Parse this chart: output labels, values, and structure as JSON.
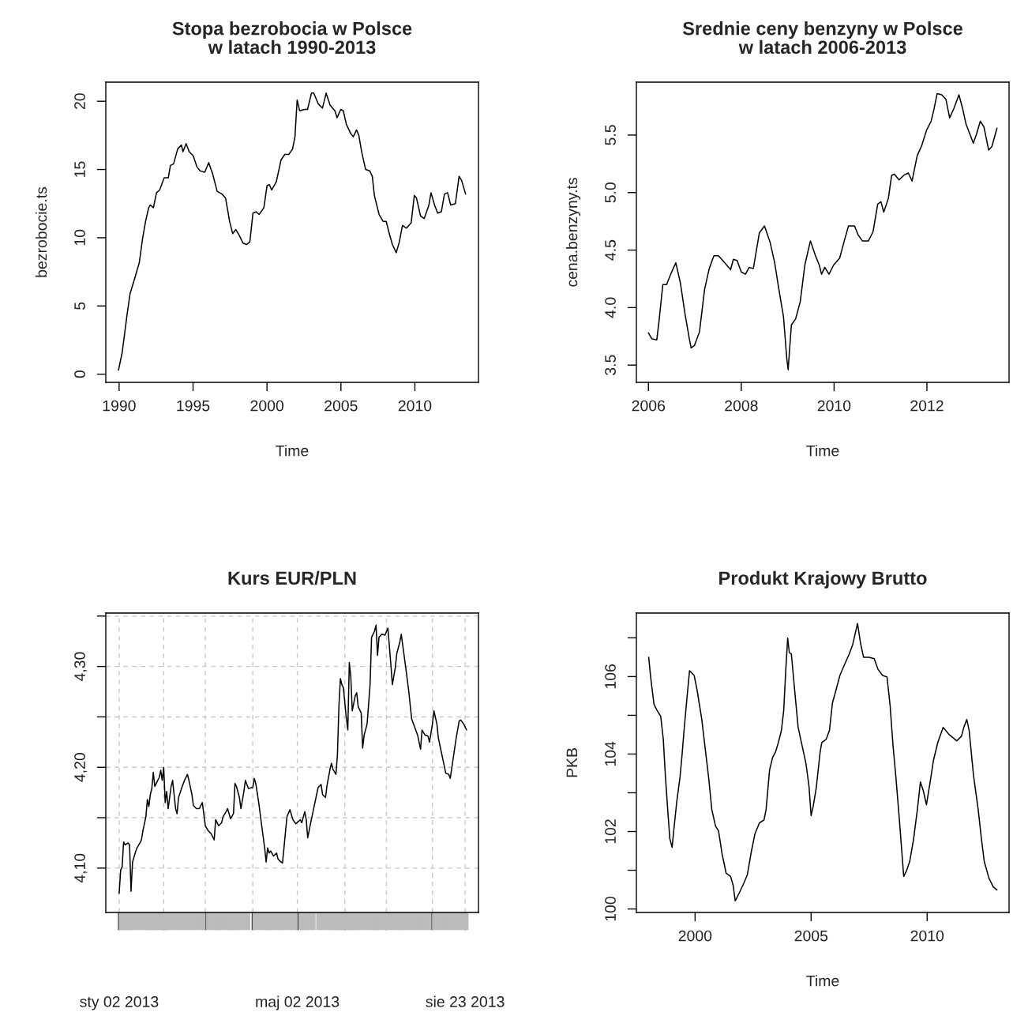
{
  "chart_data": [
    {
      "type": "line",
      "title": "Stopa bezrobocia w Polsce\nw latach 1990-2013",
      "xlabel": "Time",
      "ylabel": "bezrobocie.ts",
      "xlim": [
        1989.1,
        2014.3
      ],
      "ylim": [
        -0.6,
        21.4
      ],
      "xticks": [
        1990,
        1995,
        2000,
        2005,
        2010
      ],
      "yticks": [
        0,
        5,
        10,
        15,
        20
      ],
      "grid": false,
      "x": [
        1989.96,
        1990.21,
        1990.53,
        1990.74,
        1991.05,
        1991.37,
        1991.58,
        1991.79,
        1992.0,
        1992.11,
        1992.32,
        1992.53,
        1992.74,
        1993.05,
        1993.33,
        1993.47,
        1993.68,
        1993.96,
        1994.21,
        1994.32,
        1994.53,
        1994.74,
        1995.01,
        1995.26,
        1995.47,
        1995.79,
        1996.06,
        1996.32,
        1996.63,
        1996.95,
        1997.2,
        1997.47,
        1997.68,
        1997.89,
        1998.11,
        1998.38,
        1998.63,
        1998.84,
        1999.05,
        1999.26,
        1999.47,
        1999.79,
        2000.0,
        2000.15,
        2000.32,
        2000.63,
        2000.95,
        2001.2,
        2001.47,
        2001.73,
        2001.89,
        2002.04,
        2002.21,
        2002.53,
        2002.74,
        2003.01,
        2003.16,
        2003.47,
        2003.75,
        2004.0,
        2004.27,
        2004.59,
        2004.74,
        2004.99,
        2005.16,
        2005.37,
        2005.68,
        2005.83,
        2006.06,
        2006.21,
        2006.42,
        2006.67,
        2006.95,
        2007.12,
        2007.26,
        2007.58,
        2007.85,
        2008.06,
        2008.27,
        2008.48,
        2008.74,
        2008.95,
        2009.16,
        2009.43,
        2009.75,
        2009.96,
        2010.11,
        2010.38,
        2010.63,
        2010.95,
        2011.09,
        2011.33,
        2011.54,
        2011.79,
        2012.0,
        2012.21,
        2012.42,
        2012.74,
        2012.99,
        2013.16,
        2013.43
      ],
      "series": [
        {
          "color": "#000000",
          "values": [
            0.3,
            1.6,
            4.3,
            5.9,
            7.0,
            8.2,
            9.9,
            11.2,
            12.2,
            12.4,
            12.2,
            13.3,
            13.5,
            14.4,
            14.4,
            15.3,
            15.4,
            16.5,
            16.8,
            16.3,
            16.9,
            16.3,
            16.0,
            15.2,
            14.9,
            14.8,
            15.5,
            14.7,
            13.4,
            13.2,
            12.9,
            11.2,
            10.3,
            10.6,
            10.2,
            9.6,
            9.5,
            9.7,
            11.8,
            11.9,
            11.7,
            12.2,
            13.8,
            13.9,
            13.5,
            14.1,
            15.7,
            16.1,
            16.1,
            16.5,
            17.4,
            20.1,
            19.3,
            19.4,
            19.4,
            20.6,
            20.6,
            19.8,
            19.5,
            20.6,
            19.7,
            19.3,
            18.8,
            19.4,
            19.3,
            18.3,
            17.6,
            17.4,
            17.9,
            17.5,
            16.2,
            15.0,
            14.9,
            14.5,
            13.1,
            11.7,
            11.2,
            11.2,
            10.3,
            9.5,
            8.9,
            9.7,
            10.9,
            10.7,
            11.1,
            13.1,
            12.9,
            11.6,
            11.4,
            12.4,
            13.3,
            12.4,
            11.8,
            11.9,
            13.2,
            13.3,
            12.4,
            12.5,
            14.5,
            14.2,
            13.2
          ]
        }
      ]
    },
    {
      "type": "line",
      "title": "Srednie ceny benzyny w Polsce\nw latach 2006-2013",
      "xlabel": "Time",
      "ylabel": "cena.benzyny.ts",
      "xlim": [
        2005.74,
        2013.77
      ],
      "ylim": [
        3.35,
        5.96
      ],
      "xticks": [
        2006,
        2008,
        2010,
        2012
      ],
      "yticks": [
        {
          "value": 3.5,
          "label": "3.5"
        },
        {
          "value": 4.0,
          "label": "4.0"
        },
        {
          "value": 4.5,
          "label": "4.5"
        },
        {
          "value": 5.0,
          "label": "5.0"
        },
        {
          "value": 5.5,
          "label": "5.5"
        }
      ],
      "grid": false,
      "x": [
        2006.0,
        2006.07,
        2006.18,
        2006.23,
        2006.31,
        2006.39,
        2006.49,
        2006.59,
        2006.69,
        2006.79,
        2006.88,
        2006.92,
        2006.99,
        2007.1,
        2007.21,
        2007.31,
        2007.41,
        2007.51,
        2007.6,
        2007.77,
        2007.83,
        2007.91,
        2008.0,
        2008.09,
        2008.17,
        2008.26,
        2008.39,
        2008.5,
        2008.62,
        2008.72,
        2008.81,
        2008.91,
        2008.98,
        2009.01,
        2009.08,
        2009.17,
        2009.27,
        2009.37,
        2009.49,
        2009.6,
        2009.68,
        2009.73,
        2009.8,
        2009.89,
        2009.99,
        2010.12,
        2010.22,
        2010.31,
        2010.44,
        2010.52,
        2010.61,
        2010.74,
        2010.84,
        2010.94,
        2011.01,
        2011.07,
        2011.17,
        2011.24,
        2011.3,
        2011.4,
        2011.5,
        2011.6,
        2011.68,
        2011.79,
        2011.89,
        2011.99,
        2012.09,
        2012.15,
        2012.22,
        2012.32,
        2012.41,
        2012.49,
        2012.58,
        2012.69,
        2012.77,
        2012.84,
        2013.0,
        2013.07,
        2013.15,
        2013.23,
        2013.33,
        2013.4,
        2013.51
      ],
      "series": [
        {
          "color": "#000000",
          "values": [
            3.78,
            3.73,
            3.72,
            3.89,
            4.2,
            4.2,
            4.3,
            4.39,
            4.21,
            3.94,
            3.73,
            3.65,
            3.67,
            3.79,
            4.16,
            4.34,
            4.45,
            4.45,
            4.41,
            4.33,
            4.42,
            4.41,
            4.31,
            4.29,
            4.35,
            4.34,
            4.65,
            4.71,
            4.57,
            4.39,
            4.16,
            3.92,
            3.56,
            3.46,
            3.85,
            3.9,
            4.05,
            4.37,
            4.58,
            4.45,
            4.37,
            4.29,
            4.35,
            4.29,
            4.37,
            4.43,
            4.58,
            4.71,
            4.71,
            4.63,
            4.58,
            4.58,
            4.66,
            4.9,
            4.92,
            4.83,
            4.95,
            5.15,
            5.16,
            5.11,
            5.15,
            5.17,
            5.1,
            5.32,
            5.41,
            5.54,
            5.62,
            5.72,
            5.86,
            5.85,
            5.81,
            5.65,
            5.73,
            5.85,
            5.73,
            5.6,
            5.43,
            5.51,
            5.62,
            5.57,
            5.37,
            5.4,
            5.56
          ]
        }
      ]
    },
    {
      "type": "line",
      "title": "Kurs EUR/PLN",
      "xlim": [
        "2012-12-24",
        "2013-09-01"
      ],
      "ylim": [
        4.056,
        4.353
      ],
      "xticks": [
        {
          "value": "2013-01-02",
          "label": "sty 02 2013"
        },
        {
          "value": "2013-02-01",
          "label": null
        },
        {
          "value": "2013-03-01",
          "label": null
        },
        {
          "value": "2013-04-02",
          "label": null
        },
        {
          "value": "2013-05-02",
          "label": "maj 02 2013"
        },
        {
          "value": "2013-06-03",
          "label": null
        },
        {
          "value": "2013-07-01",
          "label": null
        },
        {
          "value": "2013-08-01",
          "label": null
        },
        {
          "value": "2013-08-23",
          "label": "sie 23 2013"
        }
      ],
      "yticks": [
        {
          "value": 4.1,
          "label": "4,10"
        },
        {
          "value": 4.15,
          "label": null
        },
        {
          "value": 4.2,
          "label": "4,20"
        },
        {
          "value": 4.25,
          "label": null
        },
        {
          "value": 4.3,
          "label": "4,30"
        },
        {
          "value": 4.35,
          "label": null
        }
      ],
      "grid": true,
      "x": [
        "2013-01-02",
        "2013-01-03",
        "2013-01-04",
        "2013-01-05",
        "2013-01-06",
        "2013-01-08",
        "2013-01-09",
        "2013-01-10",
        "2013-01-11",
        "2013-01-13",
        "2013-01-14",
        "2013-01-16",
        "2013-01-17",
        "2013-01-18",
        "2013-01-20",
        "2013-01-21",
        "2013-01-22",
        "2013-01-23",
        "2013-01-24",
        "2013-01-25",
        "2013-01-26",
        "2013-01-27",
        "2013-01-29",
        "2013-01-30",
        "2013-01-31",
        "2013-02-01",
        "2013-02-02",
        "2013-02-03",
        "2013-02-04",
        "2013-02-06",
        "2013-02-07",
        "2013-02-09",
        "2013-02-10",
        "2013-02-11",
        "2013-02-13",
        "2013-02-15",
        "2013-02-17",
        "2013-02-18",
        "2013-02-20",
        "2013-02-21",
        "2013-02-23",
        "2013-02-25",
        "2013-02-27",
        "2013-02-28",
        "2013-03-01",
        "2013-03-03",
        "2013-03-05",
        "2013-03-07",
        "2013-03-08",
        "2013-03-09",
        "2013-03-10",
        "2013-03-12",
        "2013-03-13",
        "2013-03-15",
        "2013-03-16",
        "2013-03-17",
        "2013-03-18",
        "2013-03-20",
        "2013-03-21",
        "2013-03-22",
        "2013-03-24",
        "2013-03-25",
        "2013-03-27",
        "2013-03-28",
        "2013-03-30",
        "2013-04-02",
        "2013-04-03",
        "2013-04-04",
        "2013-04-06",
        "2013-04-08",
        "2013-04-10",
        "2013-04-11",
        "2013-04-12",
        "2013-04-13",
        "2013-04-14",
        "2013-04-16",
        "2013-04-18",
        "2013-04-19",
        "2013-04-21",
        "2013-04-22",
        "2013-04-23",
        "2013-04-25",
        "2013-04-27",
        "2013-04-29",
        "2013-05-01",
        "2013-05-04",
        "2013-05-05",
        "2013-05-07",
        "2013-05-08",
        "2013-05-09",
        "2013-05-11",
        "2013-05-13",
        "2013-05-16",
        "2013-05-18",
        "2013-05-19",
        "2013-05-21",
        "2013-05-22",
        "2013-05-24",
        "2013-05-25",
        "2013-05-26",
        "2013-05-28",
        "2013-05-29",
        "2013-05-30",
        "2013-05-31",
        "2013-06-01",
        "2013-06-02",
        "2013-06-04",
        "2013-06-05",
        "2013-06-06",
        "2013-06-07",
        "2013-06-08",
        "2013-06-10",
        "2013-06-11",
        "2013-06-12",
        "2013-06-14",
        "2013-06-15",
        "2013-06-16",
        "2013-06-18",
        "2013-06-20",
        "2013-06-21",
        "2013-06-23",
        "2013-06-24",
        "2013-06-25",
        "2013-06-26",
        "2013-06-28",
        "2013-06-30",
        "2013-07-02",
        "2013-07-04",
        "2013-07-05",
        "2013-07-07",
        "2013-07-08",
        "2013-07-10",
        "2013-07-11",
        "2013-07-12",
        "2013-07-14",
        "2013-07-16",
        "2013-07-18",
        "2013-07-20",
        "2013-07-22",
        "2013-07-24",
        "2013-07-25",
        "2013-07-27",
        "2013-07-29",
        "2013-07-30",
        "2013-08-01",
        "2013-08-02",
        "2013-08-04",
        "2013-08-05",
        "2013-08-07",
        "2013-08-09",
        "2013-08-10",
        "2013-08-12",
        "2013-08-13",
        "2013-08-15",
        "2013-08-17",
        "2013-08-19",
        "2013-08-20",
        "2013-08-22",
        "2013-08-24"
      ],
      "series": [
        {
          "color": "#000000",
          "values": [
            4.075,
            4.098,
            4.101,
            4.126,
            4.123,
            4.125,
            4.123,
            4.077,
            4.106,
            4.116,
            4.12,
            4.125,
            4.128,
            4.137,
            4.151,
            4.168,
            4.161,
            4.173,
            4.179,
            4.195,
            4.181,
            4.184,
            4.19,
            4.197,
            4.187,
            4.2,
            4.165,
            4.176,
            4.159,
            4.181,
            4.187,
            4.159,
            4.154,
            4.17,
            4.179,
            4.187,
            4.193,
            4.187,
            4.173,
            4.162,
            4.159,
            4.159,
            4.165,
            4.154,
            4.142,
            4.137,
            4.134,
            4.128,
            4.148,
            4.145,
            4.142,
            4.145,
            4.151,
            4.156,
            4.159,
            4.154,
            4.149,
            4.154,
            4.184,
            4.181,
            4.17,
            4.159,
            4.176,
            4.187,
            4.179,
            4.18,
            4.189,
            4.184,
            4.165,
            4.142,
            4.12,
            4.106,
            4.12,
            4.115,
            4.117,
            4.112,
            4.115,
            4.109,
            4.106,
            4.105,
            4.12,
            4.151,
            4.158,
            4.148,
            4.144,
            4.148,
            4.145,
            4.156,
            4.148,
            4.13,
            4.145,
            4.159,
            4.18,
            4.183,
            4.173,
            4.17,
            4.182,
            4.198,
            4.204,
            4.198,
            4.193,
            4.212,
            4.26,
            4.288,
            4.282,
            4.279,
            4.249,
            4.237,
            4.304,
            4.29,
            4.256,
            4.271,
            4.274,
            4.26,
            4.254,
            4.219,
            4.232,
            4.243,
            4.282,
            4.329,
            4.335,
            4.341,
            4.311,
            4.329,
            4.332,
            4.331,
            4.338,
            4.302,
            4.282,
            4.299,
            4.313,
            4.324,
            4.332,
            4.321,
            4.299,
            4.276,
            4.248,
            4.24,
            4.232,
            4.218,
            4.237,
            4.232,
            4.231,
            4.225,
            4.243,
            4.256,
            4.243,
            4.229,
            4.215,
            4.201,
            4.194,
            4.193,
            4.189,
            4.209,
            4.229,
            4.246,
            4.247,
            4.243,
            4.237
          ]
        }
      ]
    },
    {
      "type": "line",
      "title": "Produkt Krajowy Brutto",
      "xlabel": "Time",
      "ylabel": "PKB",
      "xlim": [
        1997.47,
        2013.53
      ],
      "ylim": [
        99.91,
        107.64
      ],
      "xticks": [
        2000,
        2005,
        2010
      ],
      "yticks": [
        100,
        {
          "value": 101,
          "label": null
        },
        102,
        {
          "value": 103,
          "label": null
        },
        104,
        {
          "value": 105,
          "label": null
        },
        106,
        {
          "value": 107,
          "label": null
        }
      ],
      "grid": false,
      "x": [
        1998.0,
        1998.1,
        1998.23,
        1998.36,
        1998.52,
        1998.63,
        1998.72,
        1998.81,
        1998.91,
        1999.01,
        1999.08,
        1999.21,
        1999.35,
        1999.44,
        1999.53,
        1999.63,
        1999.76,
        1999.96,
        2000.09,
        2000.29,
        2000.42,
        2000.59,
        2000.72,
        2000.88,
        2001.01,
        2001.16,
        2001.34,
        2001.53,
        2001.64,
        2001.73,
        2001.9,
        2002.08,
        2002.25,
        2002.42,
        2002.58,
        2002.77,
        2002.97,
        2003.06,
        2003.21,
        2003.34,
        2003.47,
        2003.59,
        2003.72,
        2003.82,
        2003.91,
        2003.99,
        2004.06,
        2004.15,
        2004.28,
        2004.44,
        2004.61,
        2004.78,
        2004.91,
        2005.0,
        2005.09,
        2005.22,
        2005.39,
        2005.46,
        2005.65,
        2005.79,
        2005.92,
        2006.05,
        2006.24,
        2006.44,
        2006.64,
        2006.79,
        2007.0,
        2007.13,
        2007.26,
        2007.49,
        2007.72,
        2007.88,
        2008.08,
        2008.27,
        2008.4,
        2008.53,
        2008.66,
        2008.8,
        2008.9,
        2008.99,
        2009.12,
        2009.25,
        2009.41,
        2009.58,
        2009.71,
        2009.84,
        2009.97,
        2010.13,
        2010.27,
        2010.46,
        2010.69,
        2010.95,
        2011.28,
        2011.48,
        2011.58,
        2011.71,
        2011.81,
        2012.0,
        2012.2,
        2012.33,
        2012.46,
        2012.66,
        2012.85,
        2013.01
      ],
      "series": [
        {
          "color": "#000000",
          "values": [
            106.5,
            105.91,
            105.28,
            105.13,
            104.97,
            104.38,
            103.44,
            102.65,
            101.82,
            101.59,
            102.02,
            102.77,
            103.4,
            103.99,
            104.65,
            105.32,
            106.15,
            106.03,
            105.64,
            104.89,
            104.22,
            103.36,
            102.57,
            102.14,
            102.02,
            101.43,
            100.92,
            100.84,
            100.61,
            100.21,
            100.41,
            100.64,
            100.88,
            101.47,
            101.94,
            102.22,
            102.3,
            102.57,
            103.59,
            103.91,
            104.06,
            104.3,
            104.61,
            105.13,
            106.19,
            106.99,
            106.62,
            106.58,
            105.72,
            104.69,
            104.22,
            103.75,
            103.16,
            102.41,
            102.65,
            103.12,
            104.06,
            104.3,
            104.38,
            104.61,
            105.32,
            105.6,
            106.03,
            106.31,
            106.58,
            106.82,
            107.37,
            106.86,
            106.5,
            106.5,
            106.46,
            106.19,
            106.03,
            105.99,
            105.28,
            104.22,
            103.36,
            102.33,
            101.55,
            100.84,
            101.0,
            101.23,
            101.78,
            102.57,
            103.28,
            103.04,
            102.69,
            103.28,
            103.83,
            104.3,
            104.69,
            104.5,
            104.34,
            104.46,
            104.69,
            104.89,
            104.61,
            103.44,
            102.57,
            101.86,
            101.23,
            100.8,
            100.57,
            100.49
          ]
        }
      ]
    }
  ]
}
